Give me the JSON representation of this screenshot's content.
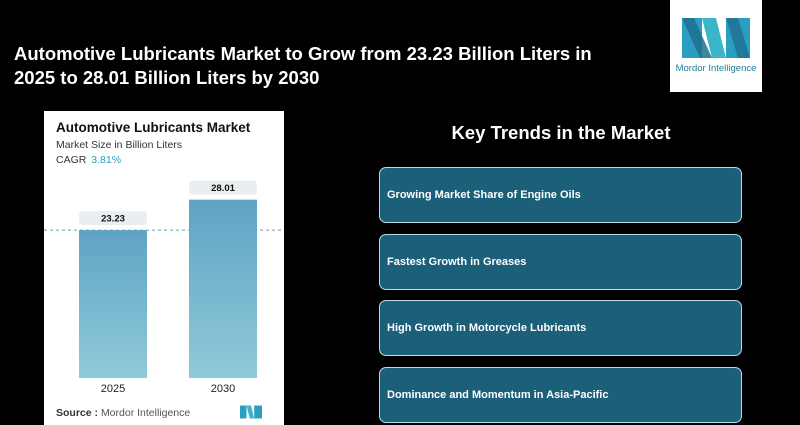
{
  "headline": "Automotive Lubricants Market to Grow from 23.23 Billion Liters in 2025 to 28.01 Billion Liters by 2030",
  "logo": {
    "text": "Mordor Intelligence",
    "icon": "mordor-intelligence-logo"
  },
  "chart_data": {
    "type": "bar",
    "title": "Automotive Lubricants Market",
    "subtitle": "Market Size in Billion Liters",
    "cagr_label": "CAGR",
    "cagr_value": "3.81%",
    "categories": [
      "2025",
      "2030"
    ],
    "values": [
      23.23,
      28.01
    ],
    "value_labels": [
      "23.23",
      "28.01"
    ],
    "ylim": [
      0,
      30
    ],
    "bar_color": "#5fa3c4",
    "bar_color_bottom": "#8fcad9",
    "reference_line": 23.23,
    "grid": false
  },
  "source": {
    "label": "Source :",
    "text": "Mordor Intelligence"
  },
  "trends": {
    "title": "Key Trends in the Market",
    "items": [
      "Growing Market Share of Engine Oils",
      "Fastest Growth in Greases",
      "High Growth in Motorcycle Lubricants",
      "Dominance and Momentum in Asia-Pacific"
    ]
  },
  "colors": {
    "accent": "#2a9ec0",
    "trend_box": "#1b5f79",
    "trend_border": "#b9dbe7"
  }
}
